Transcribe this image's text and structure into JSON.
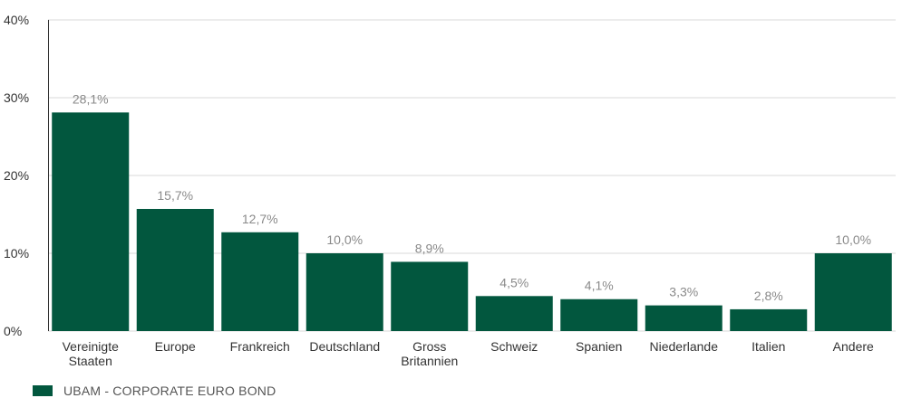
{
  "chart_data": {
    "type": "bar",
    "categories": [
      [
        "Vereinigte",
        "Staaten"
      ],
      [
        "Europe"
      ],
      [
        "Frankreich"
      ],
      [
        "Deutschland"
      ],
      [
        "Gross",
        "Britannien"
      ],
      [
        "Schweiz"
      ],
      [
        "Spanien"
      ],
      [
        "Niederlande"
      ],
      [
        "Italien"
      ],
      [
        "Andere"
      ]
    ],
    "series": [
      {
        "name": "UBAM - CORPORATE EURO BOND",
        "values": [
          28.1,
          15.7,
          12.7,
          10.0,
          8.9,
          4.5,
          4.1,
          3.3,
          2.8,
          10.0
        ],
        "labels": [
          "28,1%",
          "15,7%",
          "12,7%",
          "10,0%",
          "8,9%",
          "4,5%",
          "4,1%",
          "3,3%",
          "2,8%",
          "10,0%"
        ],
        "color": "#02573e"
      }
    ],
    "yticks": [
      0,
      10,
      20,
      30,
      40
    ],
    "ytick_labels": [
      "0%",
      "10%",
      "20%",
      "30%",
      "40%"
    ],
    "ylim": [
      0,
      40
    ],
    "grid": true,
    "legend_position": "bottom-left",
    "title": "",
    "xlabel": "",
    "ylabel": ""
  },
  "legend": {
    "label": "UBAM - CORPORATE EURO BOND",
    "color": "#02573e"
  }
}
